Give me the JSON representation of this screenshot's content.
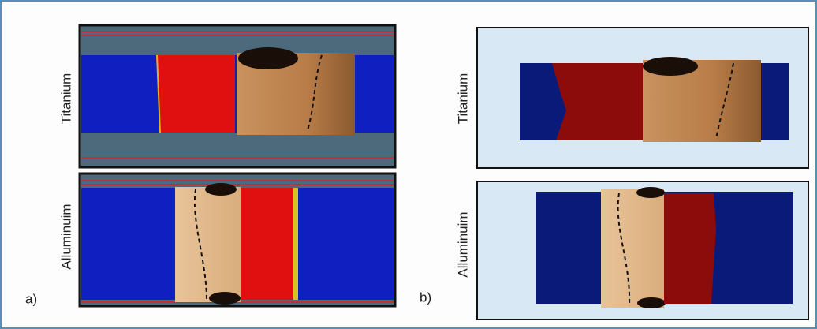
{
  "panel_a": {
    "label": "a)",
    "rows": [
      {
        "label": "Titanium"
      },
      {
        "label": "Alluminuim"
      }
    ]
  },
  "panel_b": {
    "label": "b)",
    "rows": [
      {
        "label": "Titanium"
      },
      {
        "label": "Alluminuim"
      }
    ]
  }
}
